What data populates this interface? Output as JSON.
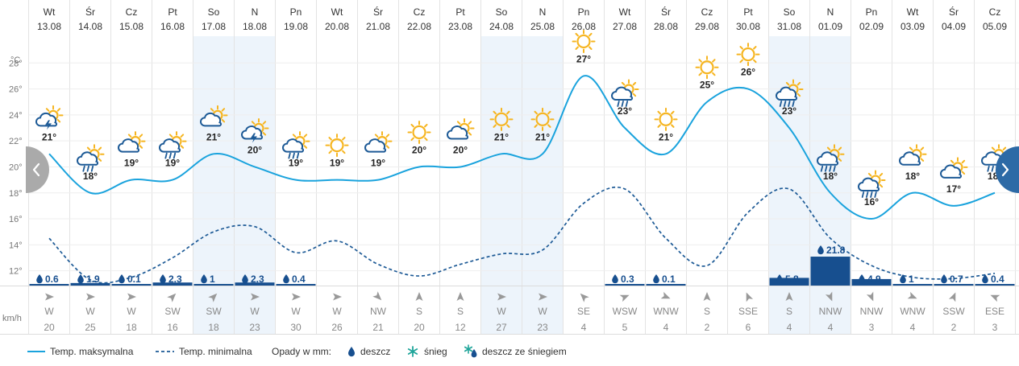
{
  "chart_data": {
    "type": "line",
    "title": "",
    "y_unit": "°C",
    "y_ticks": [
      12,
      14,
      16,
      18,
      20,
      22,
      24,
      26,
      28
    ],
    "ylim": [
      10.8,
      30
    ],
    "wind_unit": "km/h",
    "days": [
      {
        "dow": "Wt",
        "date": "13.08",
        "weekend": false,
        "max": 21,
        "min": 14.5,
        "icon": "sun-cloud-storm-icon",
        "precip": 0.6,
        "wind_dir": "W",
        "wind_speed": 20
      },
      {
        "dow": "Śr",
        "date": "14.08",
        "weekend": false,
        "max": 18,
        "min": 11.3,
        "icon": "sun-cloud-rain-icon",
        "precip": 1.9,
        "wind_dir": "W",
        "wind_speed": 25
      },
      {
        "dow": "Cz",
        "date": "15.08",
        "weekend": false,
        "max": 19,
        "min": 11.5,
        "icon": "sun-cloud-icon",
        "precip": 0.1,
        "wind_dir": "W",
        "wind_speed": 18
      },
      {
        "dow": "Pt",
        "date": "16.08",
        "weekend": false,
        "max": 19,
        "min": 13.0,
        "icon": "sun-cloud-rain-icon",
        "precip": 2.3,
        "wind_dir": "SW",
        "wind_speed": 16
      },
      {
        "dow": "So",
        "date": "17.08",
        "weekend": true,
        "max": 21,
        "min": 15.0,
        "icon": "sun-cloud-icon",
        "precip": 1.0,
        "wind_dir": "SW",
        "wind_speed": 18
      },
      {
        "dow": "N",
        "date": "18.08",
        "weekend": true,
        "max": 20,
        "min": 15.4,
        "icon": "sun-cloud-storm-icon",
        "precip": 2.3,
        "wind_dir": "W",
        "wind_speed": 23
      },
      {
        "dow": "Pn",
        "date": "19.08",
        "weekend": false,
        "max": 19,
        "min": 13.4,
        "icon": "sun-cloud-rain-icon",
        "precip": 0.4,
        "wind_dir": "W",
        "wind_speed": 30
      },
      {
        "dow": "Wt",
        "date": "20.08",
        "weekend": false,
        "max": 19,
        "min": 14.3,
        "icon": "sun-icon",
        "precip": 0,
        "wind_dir": "W",
        "wind_speed": 26
      },
      {
        "dow": "Śr",
        "date": "21.08",
        "weekend": false,
        "max": 19,
        "min": 12.5,
        "icon": "sun-cloud-icon",
        "precip": 0,
        "wind_dir": "NW",
        "wind_speed": 21
      },
      {
        "dow": "Cz",
        "date": "22.08",
        "weekend": false,
        "max": 20,
        "min": 11.6,
        "icon": "sun-icon",
        "precip": 0,
        "wind_dir": "S",
        "wind_speed": 20
      },
      {
        "dow": "Pt",
        "date": "23.08",
        "weekend": false,
        "max": 20,
        "min": 12.5,
        "icon": "sun-cloud-icon",
        "precip": 0,
        "wind_dir": "S",
        "wind_speed": 12
      },
      {
        "dow": "So",
        "date": "24.08",
        "weekend": true,
        "max": 21,
        "min": 13.3,
        "icon": "sun-icon",
        "precip": 0,
        "wind_dir": "W",
        "wind_speed": 27
      },
      {
        "dow": "N",
        "date": "25.08",
        "weekend": true,
        "max": 21,
        "min": 13.6,
        "icon": "sun-icon",
        "precip": 0,
        "wind_dir": "W",
        "wind_speed": 23
      },
      {
        "dow": "Pn",
        "date": "26.08",
        "weekend": false,
        "max": 27,
        "min": 17.2,
        "icon": "sun-icon",
        "precip": 0,
        "wind_dir": "SE",
        "wind_speed": 4
      },
      {
        "dow": "Wt",
        "date": "27.08",
        "weekend": false,
        "max": 23,
        "min": 18.3,
        "icon": "sun-cloud-rain-icon",
        "precip": 0.3,
        "wind_dir": "WSW",
        "wind_speed": 5
      },
      {
        "dow": "Śr",
        "date": "28.08",
        "weekend": false,
        "max": 21,
        "min": 14.5,
        "icon": "sun-icon",
        "precip": 0.1,
        "wind_dir": "WNW",
        "wind_speed": 4
      },
      {
        "dow": "Cz",
        "date": "29.08",
        "weekend": false,
        "max": 25,
        "min": 12.4,
        "icon": "sun-icon",
        "precip": 0,
        "wind_dir": "S",
        "wind_speed": 2
      },
      {
        "dow": "Pt",
        "date": "30.08",
        "weekend": false,
        "max": 26,
        "min": 16.5,
        "icon": "sun-icon",
        "precip": 0,
        "wind_dir": "SSE",
        "wind_speed": 6
      },
      {
        "dow": "So",
        "date": "31.08",
        "weekend": true,
        "max": 23,
        "min": 18.3,
        "icon": "sun-cloud-heavy-rain-icon",
        "precip": 5.8,
        "wind_dir": "S",
        "wind_speed": 4
      },
      {
        "dow": "N",
        "date": "01.09",
        "weekend": true,
        "max": 18,
        "min": 14.5,
        "icon": "sun-cloud-heavy-rain-icon",
        "precip": 21.8,
        "wind_dir": "NNW",
        "wind_speed": 4
      },
      {
        "dow": "Pn",
        "date": "02.09",
        "weekend": false,
        "max": 16,
        "min": 12.4,
        "icon": "sun-cloud-heavy-rain-icon",
        "precip": 4.9,
        "wind_dir": "NNW",
        "wind_speed": 3
      },
      {
        "dow": "Wt",
        "date": "03.09",
        "weekend": false,
        "max": 18,
        "min": 11.5,
        "icon": "sun-cloud-icon",
        "precip": 1.0,
        "wind_dir": "WNW",
        "wind_speed": 4
      },
      {
        "dow": "Śr",
        "date": "04.09",
        "weekend": false,
        "max": 17,
        "min": 11.4,
        "icon": "sun-cloud-icon",
        "precip": 0.7,
        "wind_dir": "SSW",
        "wind_speed": 2
      },
      {
        "dow": "Cz",
        "date": "05.09",
        "weekend": false,
        "max": 18,
        "min": 11.8,
        "icon": "sun-cloud-rain-icon",
        "precip": 0.4,
        "wind_dir": "ESE",
        "wind_speed": 3
      }
    ]
  },
  "legend": {
    "max_label": "Temp. maksymalna",
    "min_label": "Temp. minimalna",
    "precip_label": "Opady w mm:",
    "rain_label": "deszcz",
    "snow_label": "śnieg",
    "mix_label": "deszcz ze śniegiem"
  },
  "colors": {
    "max_line": "#1aa3dd",
    "min_line": "#1d5a96",
    "precip_bar": "#174f8f",
    "weekend_bg": "#edf4fb",
    "sun": "#f6b520",
    "cloud": "#1d5a96",
    "nav_left": "#aaaaaa",
    "nav_right": "#2d6aa6"
  },
  "nav": {
    "prev_icon": "chevron-left-icon",
    "next_icon": "chevron-right-icon"
  }
}
